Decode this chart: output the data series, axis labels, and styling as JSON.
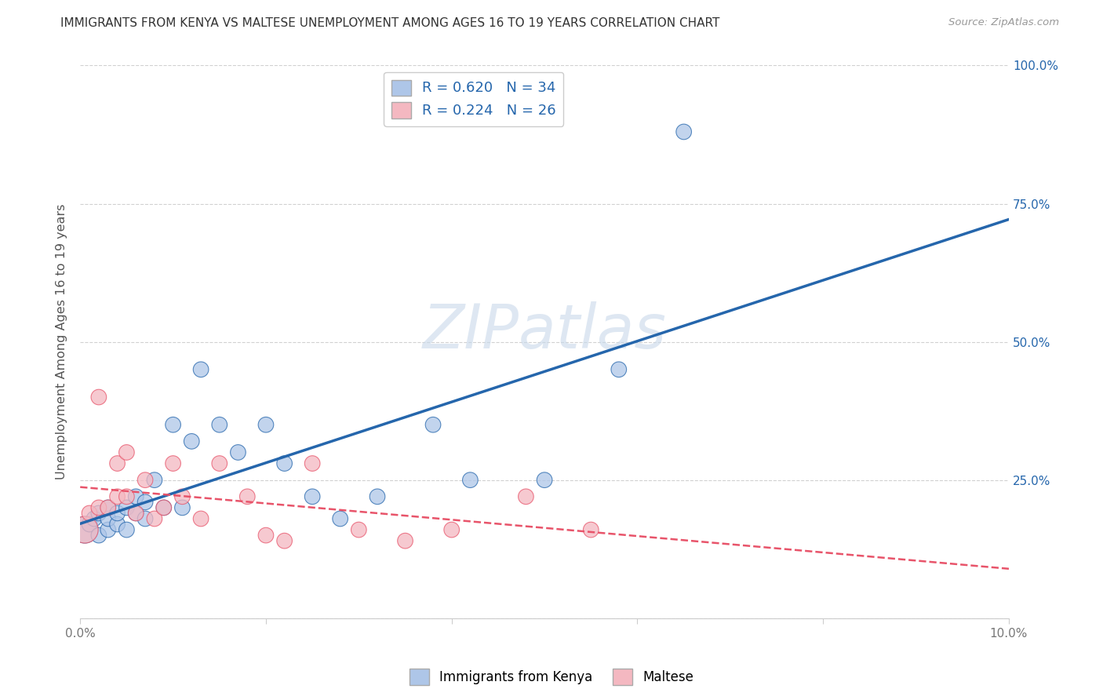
{
  "title": "IMMIGRANTS FROM KENYA VS MALTESE UNEMPLOYMENT AMONG AGES 16 TO 19 YEARS CORRELATION CHART",
  "source_text": "Source: ZipAtlas.com",
  "ylabel": "Unemployment Among Ages 16 to 19 years",
  "r_kenya": 0.62,
  "n_kenya": 34,
  "r_maltese": 0.224,
  "n_maltese": 26,
  "kenya_color": "#aec6e8",
  "kenya_edge_color": "#2566ac",
  "kenya_line_color": "#2566ac",
  "maltese_color": "#f4b8c1",
  "maltese_edge_color": "#e8546a",
  "maltese_line_color": "#e8546a",
  "watermark": "ZIPatlas",
  "background_color": "#ffffff",
  "xlim": [
    0.0,
    0.1
  ],
  "ylim": [
    0.0,
    1.0
  ],
  "x_ticks": [
    0.0,
    0.02,
    0.04,
    0.06,
    0.08,
    0.1
  ],
  "x_tick_labels": [
    "0.0%",
    "",
    "",
    "",
    "",
    "10.0%"
  ],
  "y_ticks": [
    0.0,
    0.25,
    0.5,
    0.75,
    1.0
  ],
  "y_tick_labels": [
    "",
    "25.0%",
    "50.0%",
    "75.0%",
    "100.0%"
  ],
  "kenya_x": [
    0.0005,
    0.001,
    0.0015,
    0.002,
    0.002,
    0.003,
    0.003,
    0.003,
    0.004,
    0.004,
    0.005,
    0.005,
    0.006,
    0.006,
    0.007,
    0.007,
    0.008,
    0.009,
    0.01,
    0.011,
    0.012,
    0.013,
    0.015,
    0.017,
    0.02,
    0.022,
    0.025,
    0.028,
    0.032,
    0.038,
    0.042,
    0.05,
    0.058,
    0.065
  ],
  "kenya_y": [
    0.16,
    0.17,
    0.18,
    0.15,
    0.19,
    0.16,
    0.18,
    0.2,
    0.17,
    0.19,
    0.16,
    0.2,
    0.19,
    0.22,
    0.21,
    0.18,
    0.25,
    0.2,
    0.35,
    0.2,
    0.32,
    0.45,
    0.35,
    0.3,
    0.35,
    0.28,
    0.22,
    0.18,
    0.22,
    0.35,
    0.25,
    0.25,
    0.45,
    0.88
  ],
  "kenya_large_idx": 0,
  "maltese_x": [
    0.0005,
    0.001,
    0.002,
    0.002,
    0.003,
    0.004,
    0.004,
    0.005,
    0.005,
    0.006,
    0.007,
    0.008,
    0.009,
    0.01,
    0.011,
    0.013,
    0.015,
    0.018,
    0.02,
    0.022,
    0.025,
    0.03,
    0.035,
    0.04,
    0.048,
    0.055
  ],
  "maltese_y": [
    0.16,
    0.19,
    0.2,
    0.4,
    0.2,
    0.22,
    0.28,
    0.22,
    0.3,
    0.19,
    0.25,
    0.18,
    0.2,
    0.28,
    0.22,
    0.18,
    0.28,
    0.22,
    0.15,
    0.14,
    0.28,
    0.16,
    0.14,
    0.16,
    0.22,
    0.16
  ],
  "maltese_large_idx": 0,
  "point_size": 200,
  "large_point_size": 600
}
